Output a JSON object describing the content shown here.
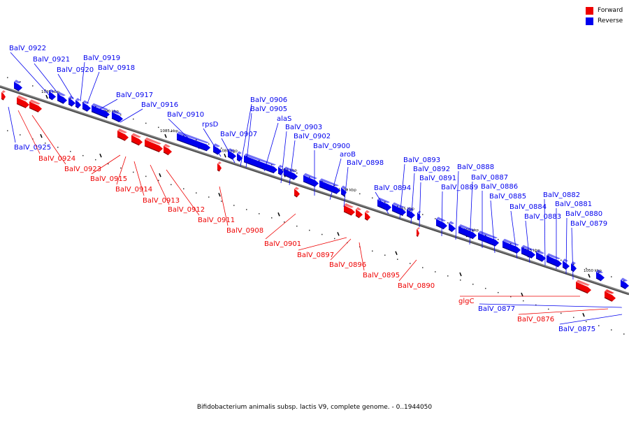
{
  "caption": "Bifidobacterium animalis subsp. lactis V9, complete genome. - 0..1944050",
  "legend": [
    {
      "label": "Forward",
      "color": "#ee0000"
    },
    {
      "label": "Reverse",
      "color": "#0000ee"
    }
  ],
  "colors": {
    "forward": "#ee0000",
    "reverse": "#0000ee",
    "axis": "#7f7f7f"
  },
  "ticks": [
    "1095 kbp",
    "1090 kbp",
    "1085 kbp",
    "1080 kbp",
    "1075 kbp",
    "1070 kbp",
    "1065 kbp",
    "1060 kbp",
    "1055 kbp",
    "1050 kbp"
  ],
  "genes": [
    {
      "name": "BalV_0922",
      "strand": "reverse"
    },
    {
      "name": "BalV_0921",
      "strand": "reverse"
    },
    {
      "name": "BalV_0920",
      "strand": "reverse"
    },
    {
      "name": "BalV_0919",
      "strand": "reverse"
    },
    {
      "name": "BalV_0918",
      "strand": "reverse"
    },
    {
      "name": "BalV_0917",
      "strand": "reverse"
    },
    {
      "name": "BalV_0916",
      "strand": "reverse"
    },
    {
      "name": "BalV_0910",
      "strand": "reverse"
    },
    {
      "name": "rpsD",
      "strand": "reverse"
    },
    {
      "name": "BalV_0907",
      "strand": "reverse"
    },
    {
      "name": "BalV_0906",
      "strand": "reverse"
    },
    {
      "name": "BalV_0905",
      "strand": "reverse"
    },
    {
      "name": "alaS",
      "strand": "reverse"
    },
    {
      "name": "BalV_0903",
      "strand": "reverse"
    },
    {
      "name": "BalV_0902",
      "strand": "reverse"
    },
    {
      "name": "BalV_0900",
      "strand": "reverse"
    },
    {
      "name": "aroB",
      "strand": "reverse"
    },
    {
      "name": "BalV_0898",
      "strand": "reverse"
    },
    {
      "name": "BalV_0894",
      "strand": "reverse"
    },
    {
      "name": "BalV_0893",
      "strand": "reverse"
    },
    {
      "name": "BalV_0892",
      "strand": "reverse"
    },
    {
      "name": "BalV_0891",
      "strand": "reverse"
    },
    {
      "name": "BalV_0889",
      "strand": "reverse"
    },
    {
      "name": "BalV_0888",
      "strand": "reverse"
    },
    {
      "name": "BalV_0887",
      "strand": "reverse"
    },
    {
      "name": "BalV_0886",
      "strand": "reverse"
    },
    {
      "name": "BalV_0885",
      "strand": "reverse"
    },
    {
      "name": "BalV_0884",
      "strand": "reverse"
    },
    {
      "name": "BalV_0883",
      "strand": "reverse"
    },
    {
      "name": "BalV_0882",
      "strand": "reverse"
    },
    {
      "name": "BalV_0881",
      "strand": "reverse"
    },
    {
      "name": "BalV_0880",
      "strand": "reverse"
    },
    {
      "name": "BalV_0879",
      "strand": "reverse"
    },
    {
      "name": "BalV_0925",
      "strand": "reverse"
    },
    {
      "name": "BalV_0877",
      "strand": "reverse"
    },
    {
      "name": "BalV_0875",
      "strand": "reverse"
    },
    {
      "name": "BalV_0924",
      "strand": "forward"
    },
    {
      "name": "BalV_0923",
      "strand": "forward"
    },
    {
      "name": "BalV_0915",
      "strand": "forward"
    },
    {
      "name": "BalV_0914",
      "strand": "forward"
    },
    {
      "name": "BalV_0913",
      "strand": "forward"
    },
    {
      "name": "BalV_0912",
      "strand": "forward"
    },
    {
      "name": "BalV_0911",
      "strand": "forward"
    },
    {
      "name": "BalV_0908",
      "strand": "forward"
    },
    {
      "name": "BalV_0901",
      "strand": "forward"
    },
    {
      "name": "BalV_0897",
      "strand": "forward"
    },
    {
      "name": "BalV_0896",
      "strand": "forward"
    },
    {
      "name": "BalV_0895",
      "strand": "forward"
    },
    {
      "name": "BalV_0890",
      "strand": "forward"
    },
    {
      "name": "glgC",
      "strand": "forward"
    },
    {
      "name": "BalV_0876",
      "strand": "forward"
    }
  ]
}
